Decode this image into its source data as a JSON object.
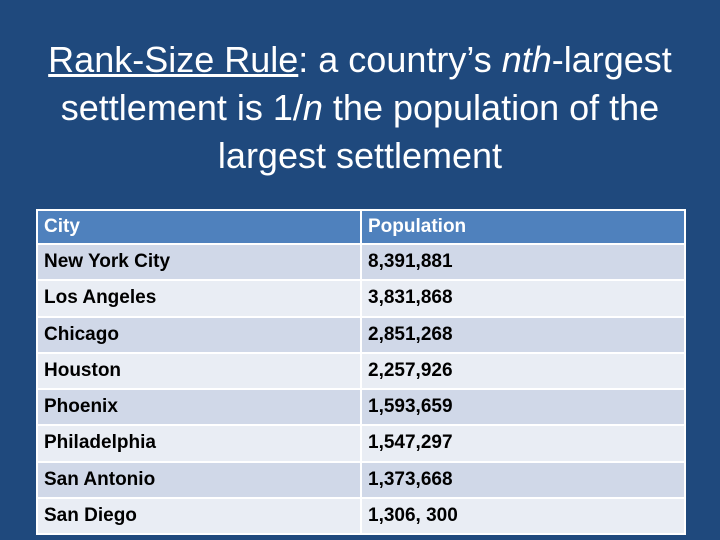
{
  "title": {
    "line1_underlined": "Rank-Size Rule",
    "line1_rest_a": ": a country’s ",
    "line1_italic": "nth",
    "line1_rest_b": "-largest",
    "line2_a": "settlement is 1/",
    "line2_italic": "n",
    "line2_b": " the population of the",
    "line3": "largest settlement"
  },
  "table": {
    "headers": [
      "City",
      "Population"
    ],
    "rows": [
      [
        "New York City",
        "8,391,881"
      ],
      [
        "Los Angeles",
        "3,831,868"
      ],
      [
        "Chicago",
        "2,851,268"
      ],
      [
        "Houston",
        "2,257,926"
      ],
      [
        "Phoenix",
        "1,593,659"
      ],
      [
        "Philadelphia",
        "1,547,297"
      ],
      [
        "San Antonio",
        "1,373,668"
      ],
      [
        "San Diego",
        "1,306, 300"
      ]
    ]
  },
  "colors": {
    "background": "#1f497d",
    "header": "#4f81bd",
    "row_dark": "#d0d8e8",
    "row_light": "#e9edf4"
  }
}
